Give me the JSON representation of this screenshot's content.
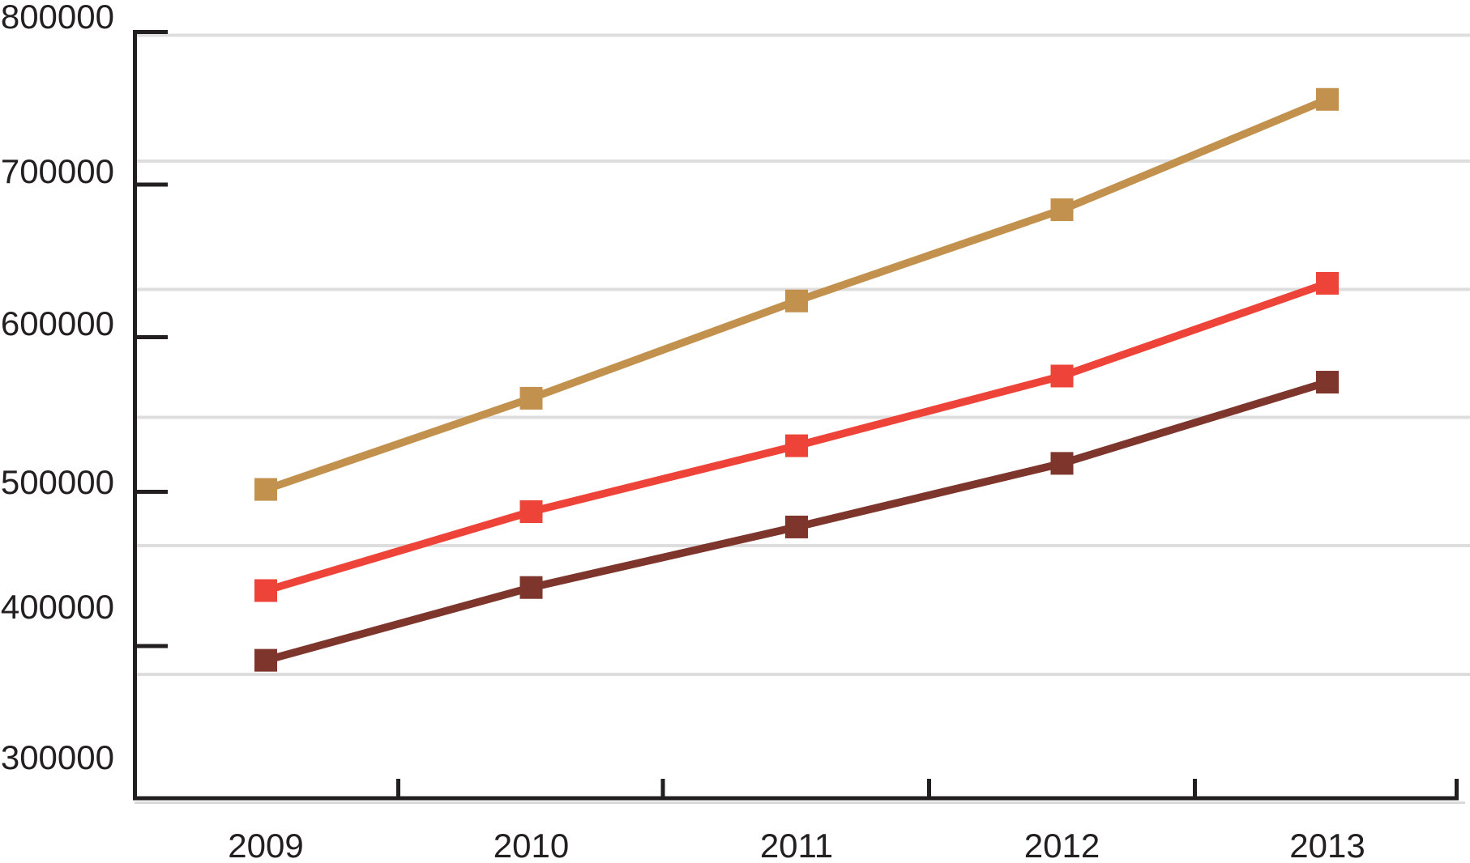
{
  "chart_data": {
    "type": "line",
    "title": "",
    "categories": [
      "2009",
      "2010",
      "2011",
      "2012",
      "2013"
    ],
    "series": [
      {
        "name": "top-line-tan",
        "color": "#C3914E",
        "values": [
          501500,
          561000,
          624500,
          684000,
          756000
        ]
      },
      {
        "name": "middle-line-red",
        "color": "#EE4338",
        "values": [
          435500,
          487000,
          530000,
          575500,
          636000
        ]
      },
      {
        "name": "bottom-line-maroon",
        "color": "#7D352C",
        "values": [
          390000,
          437500,
          477000,
          518500,
          571500
        ]
      }
    ],
    "y_axis": {
      "tick_labels": [
        "800000",
        "700000",
        "600000",
        "500000",
        "400000",
        "300000"
      ],
      "tick_values": [
        800000,
        700000,
        600000,
        500000,
        400000,
        300000
      ],
      "range": [
        300000,
        800000
      ]
    },
    "x_axis": {
      "tick_labels": [
        "2009",
        "2010",
        "2011",
        "2012",
        "2013"
      ]
    },
    "legend": "none",
    "grid": "horizontal",
    "marker_shape": "square",
    "colors": {
      "axis": "#231F20",
      "grid": "#DEDEDE",
      "axis_shadow": "#D9D9D9",
      "background": "#FFFFFF"
    }
  }
}
